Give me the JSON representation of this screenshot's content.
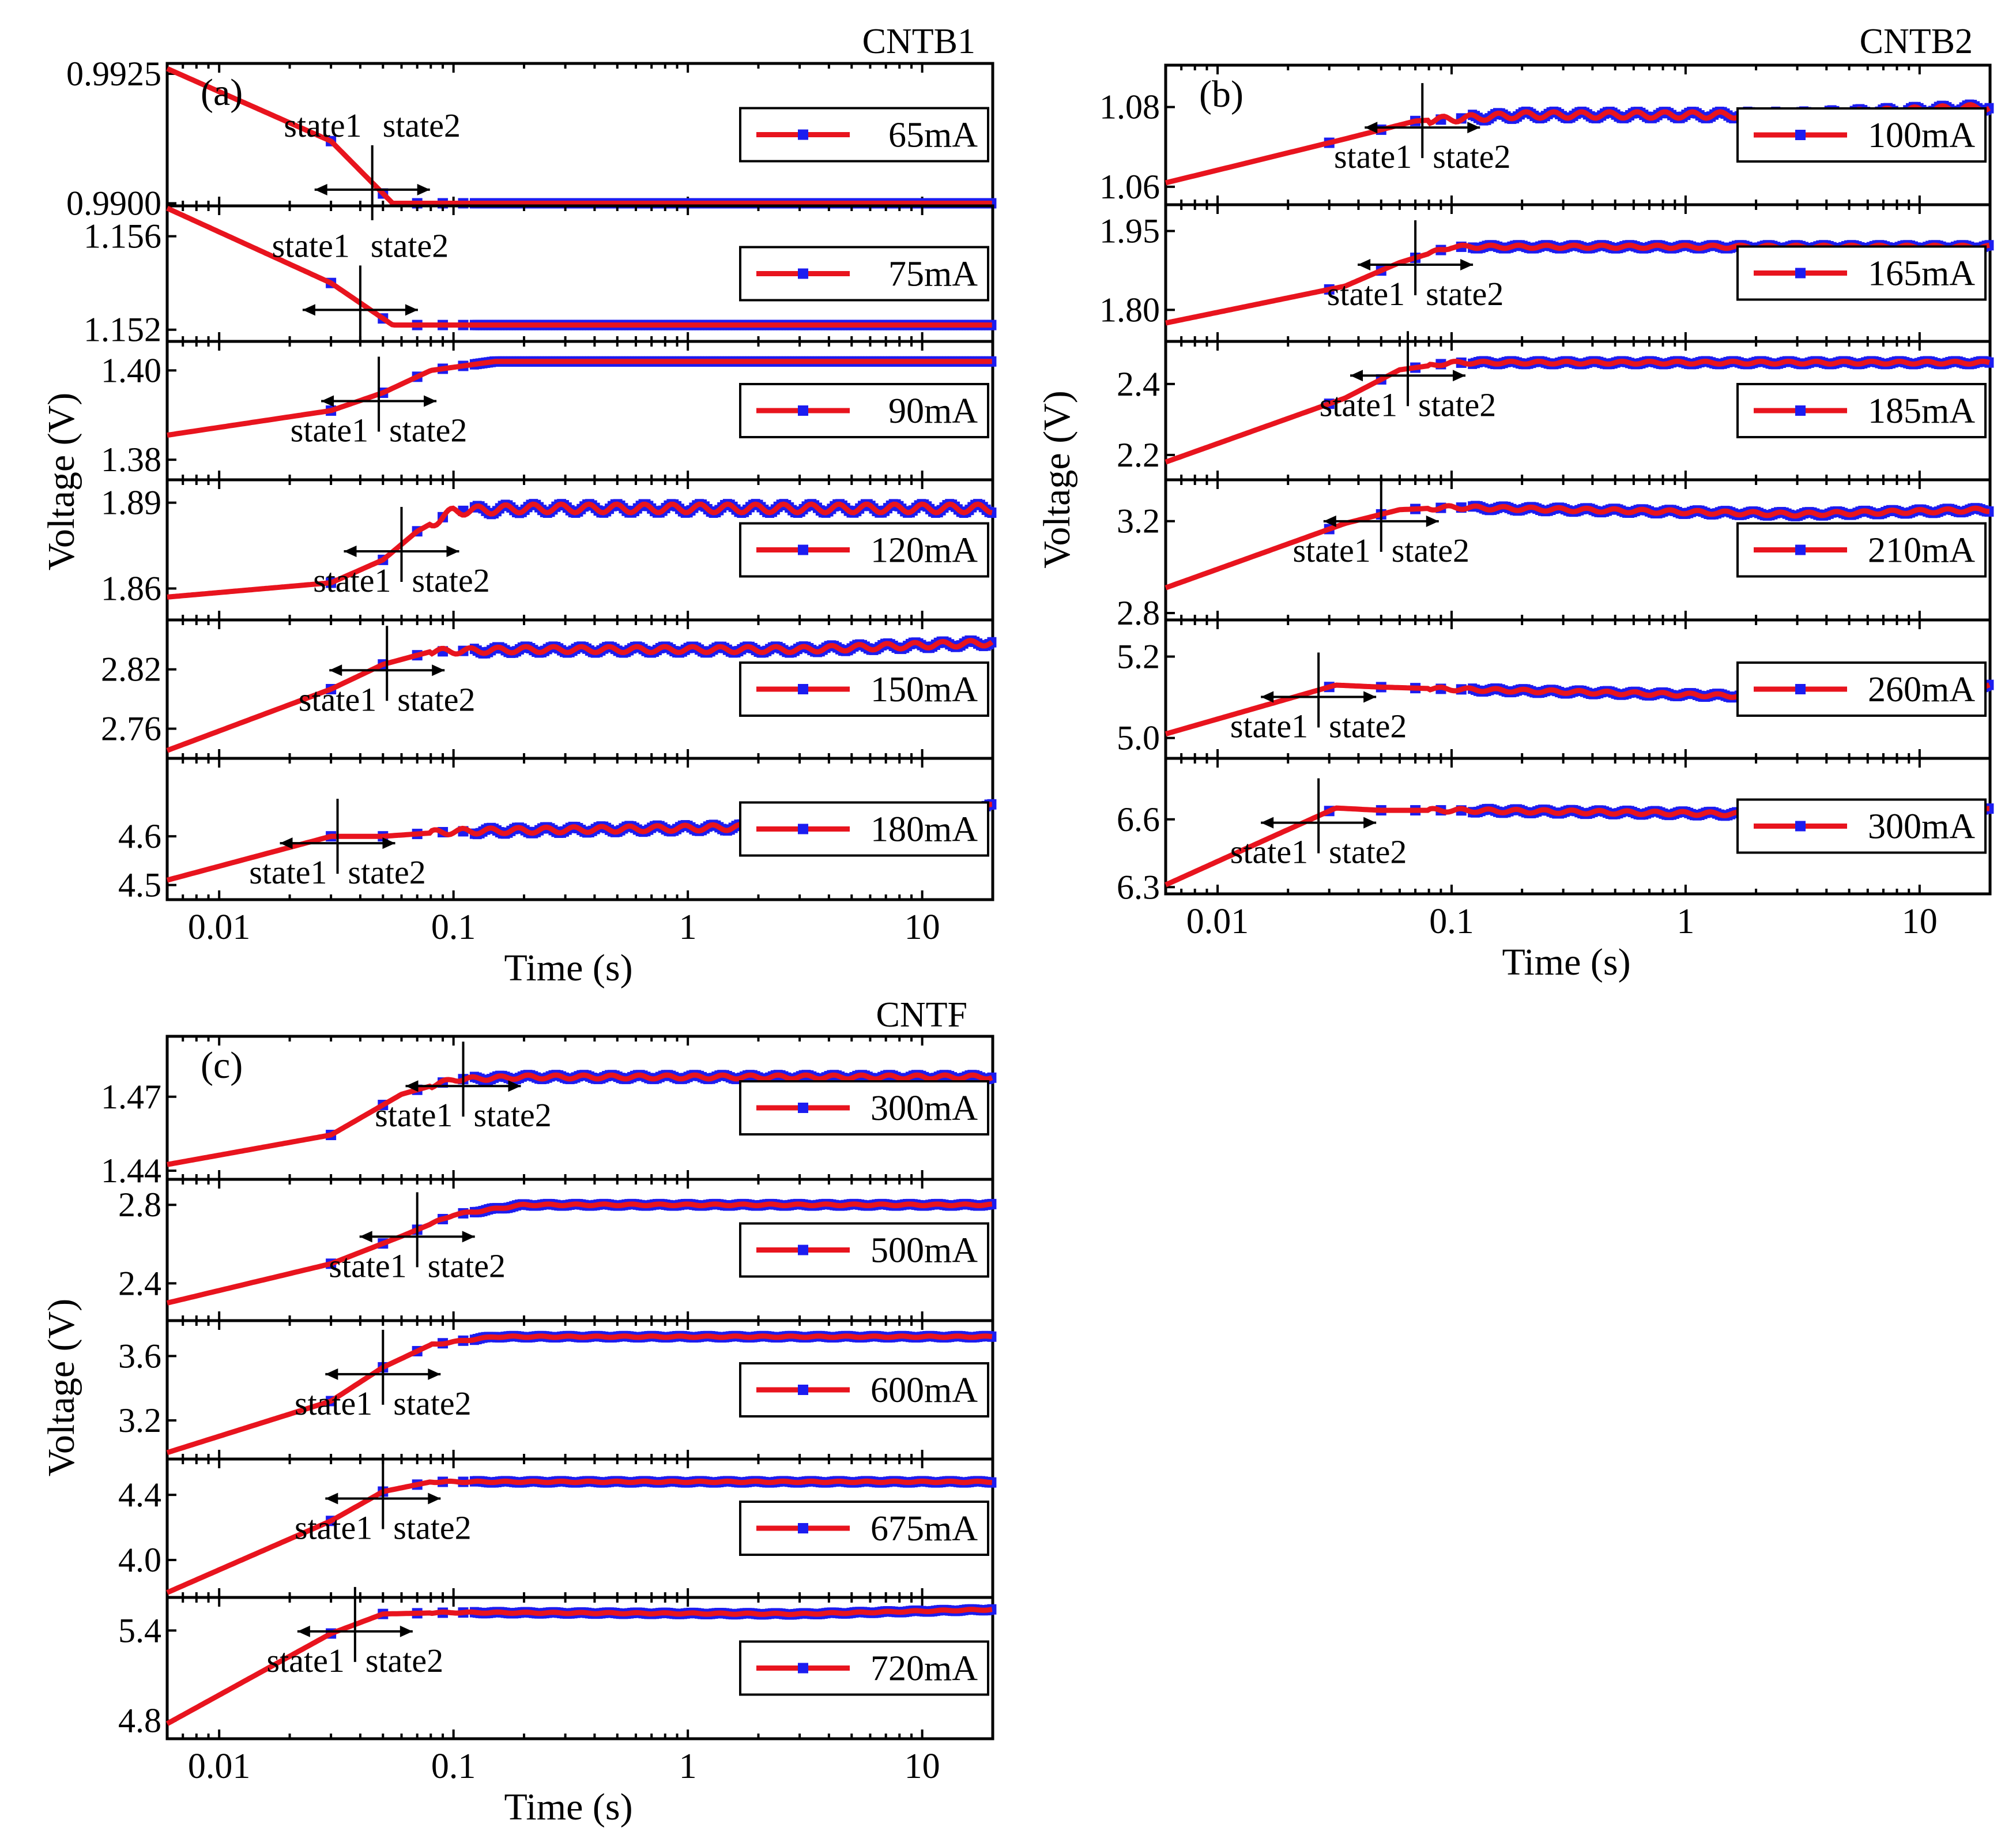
{
  "chart_data": [
    {
      "panel_label": "(a)",
      "title": "CNTB1",
      "type": "line",
      "xlabel": "Time (s)",
      "ylabel": "Voltage (V)",
      "xscale": "log",
      "xlim": [
        0.006,
        20
      ],
      "x_ticks": [
        "0.01",
        "0.1",
        "1",
        "10"
      ],
      "state_labels": [
        "state1",
        "state2"
      ],
      "series_colors": {
        "line": "#e8141e",
        "marker": "#1c1cf0"
      },
      "subplots": [
        {
          "legend": "65mA",
          "ylim": [
            0.98995,
            0.9927
          ],
          "y_ticks": [
            "0.9925",
            "0.9900"
          ],
          "x": [
            0.006,
            0.03,
            0.055,
            20
          ],
          "y": [
            0.9926,
            0.9912,
            0.99,
            0.99
          ],
          "transition_x": 0.045,
          "fluctuation": 0
        },
        {
          "legend": "75mA",
          "ylim": [
            1.1515,
            1.1573
          ],
          "y_ticks": [
            "1.156",
            "1.152"
          ],
          "x": [
            0.006,
            0.03,
            0.055,
            20
          ],
          "y": [
            1.1572,
            1.154,
            1.1522,
            1.1522
          ],
          "transition_x": 0.04,
          "fluctuation": 0
        },
        {
          "legend": "90mA",
          "ylim": [
            1.3755,
            1.4065
          ],
          "y_ticks": [
            "1.40",
            "1.38"
          ],
          "x": [
            0.006,
            0.03,
            0.05,
            0.08,
            0.15,
            20
          ],
          "y": [
            1.3855,
            1.391,
            1.395,
            1.4,
            1.402,
            1.402
          ],
          "transition_x": 0.048,
          "fluctuation": 0
        },
        {
          "legend": "120mA",
          "ylim": [
            1.849,
            1.898
          ],
          "y_ticks": [
            "1.89",
            "1.86"
          ],
          "x": [
            0.006,
            0.03,
            0.05,
            0.07,
            0.1,
            0.2,
            20
          ],
          "y": [
            1.857,
            1.862,
            1.87,
            1.88,
            1.887,
            1.888,
            1.888
          ],
          "transition_x": 0.06,
          "fluctuation": 0.0015
        },
        {
          "legend": "150mA",
          "ylim": [
            2.73,
            2.87
          ],
          "y_ticks": [
            "2.82",
            "2.76"
          ],
          "x": [
            0.006,
            0.03,
            0.05,
            0.08,
            0.2,
            3,
            20
          ],
          "y": [
            2.738,
            2.8,
            2.825,
            2.838,
            2.84,
            2.84,
            2.847
          ],
          "transition_x": 0.052,
          "fluctuation": 0.003
        },
        {
          "legend": "180mA",
          "ylim": [
            4.47,
            4.76
          ],
          "y_ticks": [
            "4.6",
            "4.5"
          ],
          "x": [
            0.006,
            0.03,
            0.05,
            0.1,
            3,
            20
          ],
          "y": [
            4.51,
            4.6,
            4.6,
            4.61,
            4.62,
            4.66
          ],
          "transition_x": 0.032,
          "fluctuation": 0.006
        }
      ]
    },
    {
      "panel_label": "(b)",
      "title": "CNTB2",
      "type": "line",
      "xlabel": "Time (s)",
      "ylabel": "Voltage (V)",
      "xscale": "log",
      "xlim": [
        0.006,
        20
      ],
      "x_ticks": [
        "0.01",
        "0.1",
        "1",
        "10"
      ],
      "state_labels": [
        "state1",
        "state2"
      ],
      "series_colors": {
        "line": "#e8141e",
        "marker": "#1c1cf0"
      },
      "subplots": [
        {
          "legend": "100mA",
          "ylim": [
            1.0555,
            1.0905
          ],
          "y_ticks": [
            "1.08",
            "1.06"
          ],
          "x": [
            0.006,
            0.035,
            0.07,
            0.2,
            3,
            20
          ],
          "y": [
            1.061,
            1.072,
            1.0765,
            1.078,
            1.078,
            1.08
          ],
          "transition_x": 0.075,
          "fluctuation": 0.0008
        },
        {
          "legend": "165mA",
          "ylim": [
            1.74,
            2.0
          ],
          "y_ticks": [
            "1.95",
            "1.80"
          ],
          "x": [
            0.006,
            0.035,
            0.06,
            0.1,
            20
          ],
          "y": [
            1.775,
            1.845,
            1.89,
            1.92,
            1.92
          ],
          "transition_x": 0.07,
          "fluctuation": 0.003
        },
        {
          "legend": "185mA",
          "ylim": [
            2.13,
            2.52
          ],
          "y_ticks": [
            "2.4",
            "2.2"
          ],
          "x": [
            0.006,
            0.035,
            0.06,
            0.1,
            20
          ],
          "y": [
            2.18,
            2.36,
            2.44,
            2.46,
            2.46
          ],
          "transition_x": 0.065,
          "fluctuation": 0.004
        },
        {
          "legend": "210mA",
          "ylim": [
            2.77,
            3.38
          ],
          "y_ticks": [
            "3.2",
            "2.8"
          ],
          "x": [
            0.006,
            0.035,
            0.06,
            0.1,
            3,
            20
          ],
          "y": [
            2.91,
            3.19,
            3.25,
            3.26,
            3.23,
            3.25
          ],
          "transition_x": 0.05,
          "fluctuation": 0.008
        },
        {
          "legend": "260mA",
          "ylim": [
            4.95,
            5.29
          ],
          "y_ticks": [
            "5.2",
            "5.0"
          ],
          "x": [
            0.006,
            0.032,
            0.05,
            0.1,
            3,
            20
          ],
          "y": [
            5.01,
            5.13,
            5.125,
            5.12,
            5.1,
            5.13
          ],
          "transition_x": 0.027,
          "fluctuation": 0.004
        },
        {
          "legend": "300mA",
          "ylim": [
            6.27,
            6.87
          ],
          "y_ticks": [
            "6.6",
            "6.3"
          ],
          "x": [
            0.006,
            0.032,
            0.05,
            0.1,
            3,
            20
          ],
          "y": [
            6.31,
            6.65,
            6.64,
            6.64,
            6.62,
            6.64
          ],
          "transition_x": 0.027,
          "fluctuation": 0.008
        }
      ]
    },
    {
      "panel_label": "(c)",
      "title": "CNTF",
      "type": "line",
      "xlabel": "Time (s)",
      "ylabel": "Voltage (V)",
      "xscale": "log",
      "xlim": [
        0.006,
        20
      ],
      "x_ticks": [
        "0.01",
        "0.1",
        "1",
        "10"
      ],
      "state_labels": [
        "state1",
        "state2"
      ],
      "series_colors": {
        "line": "#e8141e",
        "marker": "#1c1cf0"
      },
      "subplots": [
        {
          "legend": "300mA",
          "ylim": [
            1.4365,
            1.4945
          ],
          "y_ticks": [
            "1.47",
            "1.44"
          ],
          "x": [
            0.006,
            0.03,
            0.06,
            0.1,
            0.2,
            20
          ],
          "y": [
            1.4425,
            1.4545,
            1.471,
            1.477,
            1.478,
            1.478
          ],
          "transition_x": 0.11,
          "fluctuation": 0.0008
        },
        {
          "legend": "500mA",
          "ylim": [
            2.21,
            2.93
          ],
          "y_ticks": [
            "2.8",
            "2.4"
          ],
          "x": [
            0.006,
            0.03,
            0.06,
            0.1,
            0.2,
            20
          ],
          "y": [
            2.3,
            2.5,
            2.64,
            2.75,
            2.8,
            2.8
          ],
          "transition_x": 0.07,
          "fluctuation": 0.004
        },
        {
          "legend": "600mA",
          "ylim": [
            2.96,
            3.82
          ],
          "y_ticks": [
            "3.6",
            "3.2"
          ],
          "x": [
            0.006,
            0.03,
            0.05,
            0.08,
            0.15,
            20
          ],
          "y": [
            3.0,
            3.32,
            3.53,
            3.67,
            3.72,
            3.72
          ],
          "transition_x": 0.05,
          "fluctuation": 0.004
        },
        {
          "legend": "675mA",
          "ylim": [
            3.77,
            4.62
          ],
          "y_ticks": [
            "4.4",
            "4.0"
          ],
          "x": [
            0.006,
            0.03,
            0.05,
            0.08,
            20
          ],
          "y": [
            3.8,
            4.24,
            4.42,
            4.48,
            4.48
          ],
          "transition_x": 0.05,
          "fluctuation": 0.004
        },
        {
          "legend": "720mA",
          "ylim": [
            4.68,
            5.62
          ],
          "y_ticks": [
            "5.4",
            "4.8"
          ],
          "x": [
            0.006,
            0.03,
            0.05,
            0.1,
            3,
            20
          ],
          "y": [
            4.78,
            5.38,
            5.51,
            5.52,
            5.51,
            5.54
          ],
          "transition_x": 0.038,
          "fluctuation": 0.004
        }
      ]
    }
  ]
}
